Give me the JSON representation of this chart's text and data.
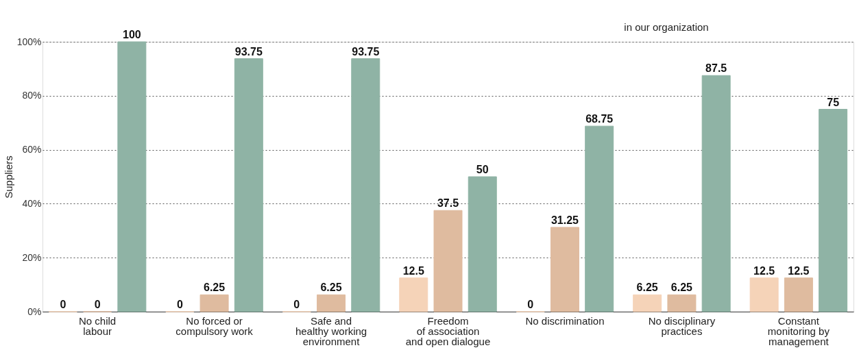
{
  "chart_data": {
    "type": "bar",
    "ylabel": "Suppliers",
    "categories": [
      "No child\nlabour",
      "No forced or\ncompulsory work",
      "Safe and\nhealthy working\nenvironment",
      "Freedom\nof association\nand open dialogue",
      "No discrimination",
      "No disciplinary\npractices",
      "Constant\nmonitoring by\nmanagement"
    ],
    "series": [
      {
        "color": "#f5d3b8",
        "values": [
          0,
          0,
          0,
          12.5,
          0,
          6.25,
          12.5
        ]
      },
      {
        "color": "#dfbb9f",
        "values": [
          0,
          6.25,
          6.25,
          37.5,
          31.25,
          6.25,
          12.5
        ]
      },
      {
        "color": "#8fb3a5",
        "values": [
          100,
          93.75,
          93.75,
          50,
          68.75,
          87.5,
          75
        ]
      }
    ],
    "ylim": [
      0,
      100
    ],
    "yticks": [
      {
        "value": 0,
        "label": "0%"
      },
      {
        "value": 20,
        "label": "20%"
      },
      {
        "value": 40,
        "label": "40%"
      },
      {
        "value": 60,
        "label": "60%"
      },
      {
        "value": 80,
        "label": "80%"
      },
      {
        "value": 100,
        "label": "100%"
      }
    ],
    "grid": "y",
    "data_labels": true,
    "legend": false,
    "annotations": [
      "in our organization"
    ]
  }
}
